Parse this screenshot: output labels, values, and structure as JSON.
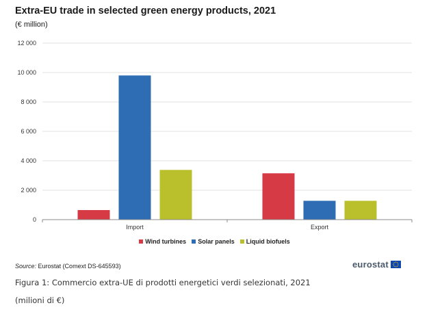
{
  "chart_data": {
    "type": "bar",
    "title": "Extra-EU trade in selected green energy products, 2021",
    "subtitle": "(€ million)",
    "categories": [
      "Import",
      "Export"
    ],
    "series": [
      {
        "name": "Wind turbines",
        "color": "#d63a45",
        "values": [
          650,
          3150
        ]
      },
      {
        "name": "Solar panels",
        "color": "#2e6db4",
        "values": [
          9800,
          1280
        ]
      },
      {
        "name": "Liquid biofuels",
        "color": "#b9c02b",
        "values": [
          3380,
          1280
        ]
      }
    ],
    "ylim": [
      0,
      12000
    ],
    "yticks": [
      0,
      2000,
      4000,
      6000,
      8000,
      10000,
      12000
    ],
    "ytick_labels": [
      "0",
      "2 000",
      "4 000",
      "6 000",
      "8 000",
      "10 000",
      "12 000"
    ],
    "grid": true,
    "legend_position": "bottom"
  },
  "source": {
    "label": "Source:",
    "text": "Eurostat (Comext  DS-645593)"
  },
  "logo": {
    "text": "eurostat",
    "flag_color": "#0f47af",
    "star_color": "#ffcc00"
  },
  "caption": {
    "line1": "Figura 1: Commercio extra-UE di prodotti energetici verdi selezionati, 2021",
    "line2": "(milioni di €)"
  }
}
